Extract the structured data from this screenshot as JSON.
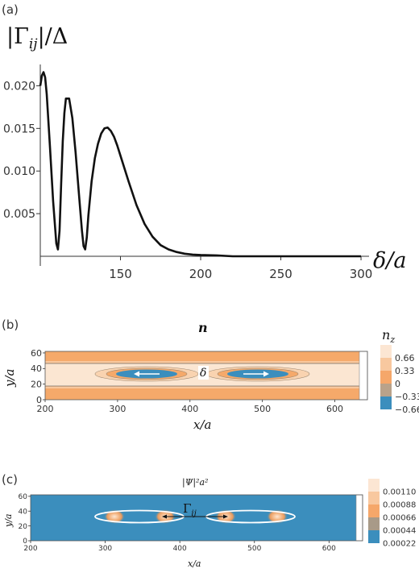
{
  "chart_data": [
    {
      "panel": "(a)",
      "type": "line",
      "ylabel": "|Γ_ij|/Δ",
      "xlabel": "δ/a",
      "xticks": [
        150,
        200,
        250,
        300
      ],
      "yticks": [
        0.005,
        0.01,
        0.015,
        0.02
      ],
      "ytick_labels": [
        "0.005",
        "0.010",
        "0.015",
        "0.020"
      ],
      "xlim": [
        100,
        305
      ],
      "ylim": [
        0.0,
        0.0225
      ],
      "grid": false,
      "series": [
        {
          "x": [
            100,
            101,
            102,
            103,
            104,
            106,
            108,
            110,
            111,
            112,
            113,
            114,
            115,
            116,
            118,
            120,
            122,
            124,
            126,
            127,
            128,
            129,
            130,
            132,
            134,
            136,
            138,
            140,
            142,
            144,
            146,
            148,
            150,
            155,
            160,
            165,
            170,
            175,
            180,
            185,
            190,
            195,
            200,
            210,
            220,
            240,
            260,
            280,
            300
          ],
          "y": [
            0.02,
            0.0212,
            0.0216,
            0.021,
            0.019,
            0.013,
            0.0065,
            0.0015,
            0.0008,
            0.003,
            0.0085,
            0.0135,
            0.0168,
            0.0185,
            0.0185,
            0.0162,
            0.0122,
            0.0075,
            0.003,
            0.0012,
            0.0008,
            0.0022,
            0.0048,
            0.0088,
            0.0115,
            0.0132,
            0.0144,
            0.015,
            0.0151,
            0.0147,
            0.014,
            0.013,
            0.0118,
            0.0088,
            0.006,
            0.0038,
            0.0023,
            0.0013,
            0.0008,
            0.0005,
            0.0003,
            0.0002,
            0.00015,
            0.0001,
            0.0,
            0.0,
            0.0,
            0.0,
            0.0
          ]
        }
      ]
    },
    {
      "panel": "(b)",
      "type": "heatmap",
      "title": "n",
      "xlabel": "x/a",
      "ylabel": "y/a",
      "xticks": [
        200,
        300,
        400,
        500,
        600
      ],
      "yticks": [
        0,
        20,
        40,
        60
      ],
      "xlim": [
        200,
        645
      ],
      "ylim": [
        0,
        62
      ],
      "annotation": "δ",
      "colorbar": {
        "title": "n_z",
        "labels": [
          "0.66",
          "0.33",
          "0",
          "−0.33",
          "−0.66"
        ],
        "colors": [
          "#fce6d3",
          "#f8c89f",
          "#f5a76a",
          "#b9a28a",
          "#3b8ebd"
        ]
      }
    },
    {
      "panel": "(c)",
      "type": "heatmap",
      "title": "|Ψ|²a²",
      "xlabel": "x/a",
      "ylabel": "y/a",
      "xticks": [
        200,
        300,
        400,
        500,
        600
      ],
      "yticks": [
        0,
        20,
        40,
        60
      ],
      "xlim": [
        200,
        645
      ],
      "ylim": [
        0,
        62
      ],
      "annotation": "Γ_ij",
      "colorbar": {
        "labels": [
          "0.00110",
          "0.00088",
          "0.00066",
          "0.00044",
          "0.00022"
        ],
        "colors": [
          "#fce6d3",
          "#f8c89f",
          "#f5a76a",
          "#a89a88",
          "#3b8ebd"
        ]
      }
    }
  ],
  "labels": {
    "panel_a": "(a)",
    "panel_b": "(b)",
    "panel_c": "(c)",
    "a_ylabel_main": "|Γ",
    "a_ylabel_sub": "ij",
    "a_ylabel_tail": "|/Δ",
    "a_xlabel": "δ/a",
    "b_title": "n",
    "b_xlabel": "x/a",
    "b_ylabel": "y/a",
    "b_cb_title_main": "n",
    "b_cb_title_sub": "z",
    "b_delta": "δ",
    "c_title": "|Ψ|²a²",
    "c_xlabel": "x/a",
    "c_ylabel": "y/a",
    "c_gamma_main": "Γ",
    "c_gamma_sub": "ij"
  }
}
